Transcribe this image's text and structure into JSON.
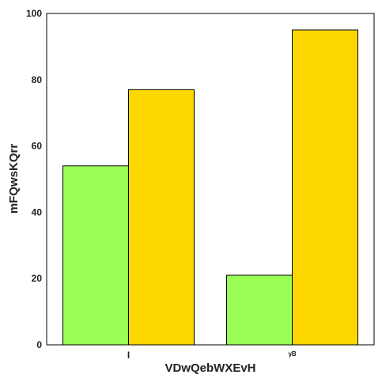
{
  "chart_data": {
    "type": "bar",
    "categories": [
      "I",
      "ᵞᴮ"
    ],
    "series": [
      {
        "values": [
          54,
          21
        ],
        "color": "#99ff55"
      },
      {
        "values": [
          77,
          95
        ],
        "color": "#ffd700"
      }
    ],
    "xlabel": "VDwQebWXEvH",
    "ylabel": "mFQwsKQrr",
    "ylim": [
      0,
      100
    ],
    "yticks": [
      0,
      20,
      40,
      60,
      80,
      100
    ],
    "grid": false
  }
}
